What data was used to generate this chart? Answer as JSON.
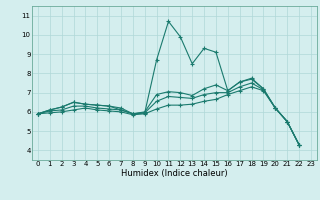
{
  "xlabel": "Humidex (Indice chaleur)",
  "background_color": "#d4eeee",
  "line_color": "#1a7a6e",
  "xlim": [
    -0.5,
    23.5
  ],
  "ylim": [
    3.5,
    11.5
  ],
  "xticks": [
    0,
    1,
    2,
    3,
    4,
    5,
    6,
    7,
    8,
    9,
    10,
    11,
    12,
    13,
    14,
    15,
    16,
    17,
    18,
    19,
    20,
    21,
    22,
    23
  ],
  "yticks": [
    4,
    5,
    6,
    7,
    8,
    9,
    10,
    11
  ],
  "x_values": [
    0,
    1,
    2,
    3,
    4,
    5,
    6,
    7,
    8,
    9,
    10,
    11,
    12,
    13,
    14,
    15,
    16,
    17,
    18,
    19,
    20,
    21,
    22
  ],
  "series": [
    [
      5.9,
      6.1,
      6.25,
      6.5,
      6.4,
      6.35,
      6.3,
      6.2,
      5.9,
      5.95,
      8.7,
      10.7,
      9.9,
      8.5,
      9.3,
      9.1,
      7.1,
      7.55,
      7.75,
      7.2,
      6.2,
      5.5,
      4.3
    ],
    [
      5.9,
      6.1,
      6.25,
      6.5,
      6.4,
      6.35,
      6.3,
      6.1,
      5.9,
      6.0,
      6.9,
      7.05,
      7.0,
      6.85,
      7.2,
      7.4,
      7.1,
      7.55,
      7.7,
      7.2,
      6.2,
      5.5,
      4.3
    ],
    [
      5.9,
      6.05,
      6.1,
      6.3,
      6.3,
      6.2,
      6.15,
      6.1,
      5.9,
      5.95,
      6.55,
      6.8,
      6.75,
      6.7,
      6.9,
      7.0,
      7.0,
      7.3,
      7.5,
      7.15,
      6.2,
      5.5,
      4.3
    ],
    [
      5.9,
      5.95,
      6.0,
      6.1,
      6.2,
      6.1,
      6.05,
      6.0,
      5.85,
      5.9,
      6.15,
      6.35,
      6.35,
      6.4,
      6.55,
      6.65,
      6.9,
      7.1,
      7.3,
      7.1,
      6.2,
      5.5,
      4.3
    ]
  ]
}
